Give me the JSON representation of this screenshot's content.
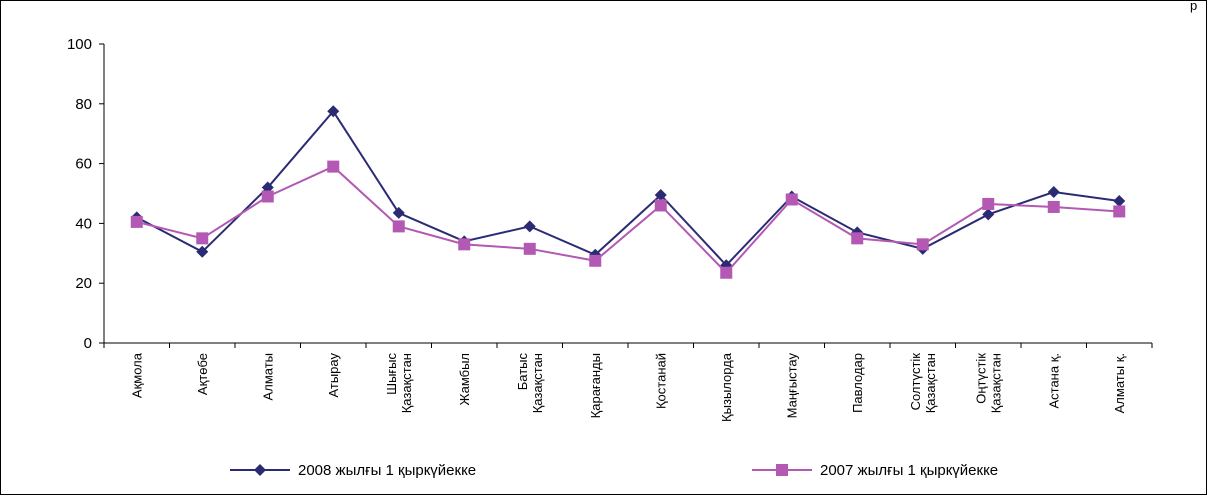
{
  "corner_label": "р",
  "chart_data": {
    "type": "line",
    "categories": [
      [
        "Ақмола"
      ],
      [
        "Ақтөбе"
      ],
      [
        "Алматы"
      ],
      [
        "Атырау"
      ],
      [
        "Шығыс",
        "Қазақстан"
      ],
      [
        "Жамбыл"
      ],
      [
        "Батыс",
        "Қазақстан"
      ],
      [
        "Қарағанды"
      ],
      [
        "Қостанай"
      ],
      [
        "Қызылорда"
      ],
      [
        "Маңғыстау"
      ],
      [
        "Павлодар"
      ],
      [
        "Солтүстік",
        "Қазақстан"
      ],
      [
        "Оңтүстік",
        "Қазақстан"
      ],
      [
        "Астана қ."
      ],
      [
        "Алматы қ."
      ]
    ],
    "series": [
      {
        "name": "2008 жылғы 1 қыркүйекке",
        "color": "#2b2b73",
        "marker": "diamond",
        "values": [
          42,
          30.5,
          52,
          77.5,
          43.5,
          34,
          39,
          29.5,
          49.5,
          26,
          49,
          37,
          31.5,
          43,
          50.5,
          47.5
        ]
      },
      {
        "name": "2007 жылғы 1 қыркүйекке",
        "color": "#b358b3",
        "marker": "square",
        "values": [
          40.5,
          35,
          49,
          59,
          39,
          33,
          31.5,
          27.5,
          46,
          23.5,
          48,
          35,
          33,
          46.5,
          45.5,
          44
        ]
      }
    ],
    "ylim": [
      0,
      100
    ],
    "yticks": [
      0,
      20,
      40,
      60,
      80,
      100
    ],
    "grid": false,
    "legend": "bottom"
  }
}
